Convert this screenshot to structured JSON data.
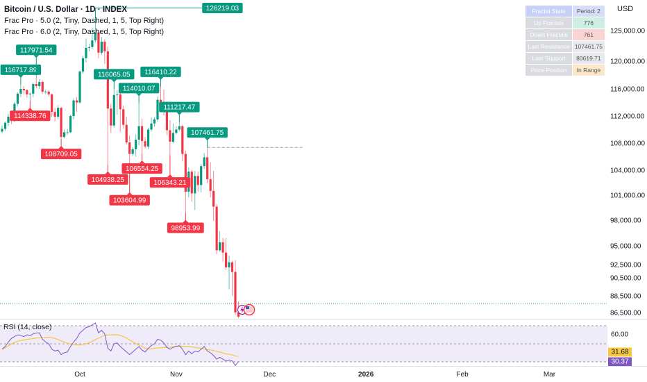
{
  "header": {
    "title": "Bitcoin / U.S. Dollar · 1D · INDEX",
    "indicators": [
      "Frac Pro · 5.0 (2, Tiny, Dashed, 1, 5, Top Right)",
      "Frac Pro · 6.0 (2, Tiny, Dashed, 1, 5, Top Right)"
    ]
  },
  "axis": {
    "currency": "USD"
  },
  "table": {
    "rows": [
      {
        "label": "Fractal State",
        "value": "Period: 2",
        "label_bg": "#c7d0f6",
        "value_bg": "#d6ddf7"
      },
      {
        "label": "Up Fractals",
        "value": "776",
        "label_bg": "#d9dbe0",
        "value_bg": "#cdeee2"
      },
      {
        "label": "Down Fractals",
        "value": "761",
        "label_bg": "#d9dbe0",
        "value_bg": "#f9d4d4"
      },
      {
        "label": "Last Resistance",
        "value": "107461.75",
        "label_bg": "#d9dbe0",
        "value_bg": "#e8e9ec"
      },
      {
        "label": "Last Support",
        "value": "80619.71",
        "label_bg": "#d9dbe0",
        "value_bg": "#e8e9ec"
      },
      {
        "label": "Price Position",
        "value": "In Range",
        "label_bg": "#d9dbe0",
        "value_bg": "#fde7cb"
      }
    ]
  },
  "colors": {
    "up": "#089981",
    "down": "#f23645",
    "rsi": "#7e57c2",
    "rsi_ma": "#f5c842",
    "rsi_band": "#efebf8"
  },
  "chart_data": [
    {
      "type": "candlestick",
      "interval": "1D",
      "first_date": "2025-09-06",
      "y_ticks": [
        "125,000.00",
        "120,000.00",
        "116,000.00",
        "112,000.00",
        "108,000.00",
        "104,000.00",
        "101,000.00",
        "98,000.00",
        "95,000.00",
        "92,500.00",
        "90,500.00",
        "88,500.00",
        "86,500.00"
      ],
      "y_tick_values": [
        125000,
        120000,
        116000,
        112000,
        108000,
        104000,
        101000,
        98000,
        95000,
        92500,
        90500,
        88500,
        86500
      ],
      "x_ticks": [
        {
          "label": "Oct",
          "date": "2025-10-01"
        },
        {
          "label": "Nov",
          "date": "2025-11-01"
        },
        {
          "label": "Dec",
          "date": "2025-12-01"
        },
        {
          "label": "2026",
          "date": "2026-01-01",
          "bold": true
        },
        {
          "label": "Feb",
          "date": "2026-02-01"
        },
        {
          "label": "Mar",
          "date": "2026-03-01"
        }
      ],
      "ohlc": [
        [
          109800,
          110700,
          109500,
          110200
        ],
        [
          110200,
          111300,
          109900,
          111100
        ],
        [
          111100,
          112400,
          110600,
          112000
        ],
        [
          112000,
          112600,
          110900,
          111400
        ],
        [
          111400,
          114200,
          111200,
          113900
        ],
        [
          113900,
          115600,
          113500,
          115400
        ],
        [
          115400,
          116718,
          114900,
          116100
        ],
        [
          116100,
          116500,
          115300,
          115900
        ],
        [
          115900,
          116100,
          114800,
          115300
        ],
        [
          115300,
          115600,
          114339,
          115400
        ],
        [
          115400,
          117000,
          114900,
          116800
        ],
        [
          116800,
          117972,
          116200,
          116500
        ],
        [
          116500,
          117500,
          116100,
          117100
        ],
        [
          117100,
          117300,
          115400,
          115700
        ],
        [
          115700,
          116000,
          115300,
          115700
        ],
        [
          115700,
          115900,
          115000,
          115300
        ],
        [
          115300,
          115400,
          112000,
          112700
        ],
        [
          112700,
          113300,
          111300,
          112000
        ],
        [
          112000,
          113700,
          111600,
          113300
        ],
        [
          113300,
          113500,
          108709,
          109000
        ],
        [
          109000,
          110100,
          108800,
          109700
        ],
        [
          109700,
          110200,
          109300,
          109700
        ],
        [
          109700,
          112300,
          109600,
          112100
        ],
        [
          112100,
          114700,
          111600,
          114400
        ],
        [
          114400,
          114900,
          112700,
          114100
        ],
        [
          114100,
          118800,
          113900,
          118600
        ],
        [
          118600,
          121000,
          118300,
          120600
        ],
        [
          120600,
          123800,
          119900,
          122300
        ],
        [
          122300,
          122900,
          121700,
          122400
        ],
        [
          122400,
          125600,
          122100,
          123500
        ],
        [
          123500,
          126219,
          123200,
          124800
        ],
        [
          124800,
          125100,
          120600,
          121500
        ],
        [
          121500,
          124100,
          121100,
          123300
        ],
        [
          123300,
          123700,
          119700,
          121700
        ],
        [
          121700,
          122500,
          104938,
          113200
        ],
        [
          113200,
          113900,
          109600,
          110700
        ],
        [
          110700,
          116065,
          110400,
          115200
        ],
        [
          115200,
          115900,
          112300,
          115300
        ],
        [
          115300,
          115700,
          109800,
          113100
        ],
        [
          113100,
          113600,
          110200,
          110800
        ],
        [
          110800,
          112000,
          107900,
          108200
        ],
        [
          108200,
          109200,
          103605,
          106500
        ],
        [
          106500,
          107500,
          106200,
          107200
        ],
        [
          107200,
          109400,
          106100,
          108600
        ],
        [
          108600,
          114010,
          107800,
          110600
        ],
        [
          110600,
          111700,
          106554,
          108400
        ],
        [
          108400,
          109000,
          107300,
          107600
        ],
        [
          107600,
          110400,
          107200,
          110100
        ],
        [
          110100,
          111900,
          109800,
          111000
        ],
        [
          111000,
          111900,
          110500,
          111600
        ],
        [
          111600,
          115000,
          111300,
          114500
        ],
        [
          114500,
          116410,
          113900,
          114100
        ],
        [
          114100,
          116000,
          112200,
          112900
        ],
        [
          112900,
          113600,
          109300,
          110000
        ],
        [
          110000,
          111500,
          106343,
          108300
        ],
        [
          108300,
          111000,
          108100,
          109600
        ],
        [
          109600,
          110600,
          109400,
          110100
        ],
        [
          110100,
          111217,
          109900,
          110600
        ],
        [
          110600,
          110800,
          105400,
          106500
        ],
        [
          106500,
          107000,
          98954,
          101500
        ],
        [
          101500,
          104500,
          100800,
          103900
        ],
        [
          103900,
          104100,
          100300,
          101300
        ],
        [
          101300,
          104000,
          99300,
          103400
        ],
        [
          103400,
          103900,
          101500,
          102300
        ],
        [
          102300,
          105000,
          101400,
          104700
        ],
        [
          104700,
          106600,
          104300,
          106000
        ],
        [
          106000,
          107462,
          102500,
          103000
        ],
        [
          103000,
          105300,
          100800,
          101600
        ],
        [
          101600,
          104000,
          98000,
          99700
        ],
        [
          99700,
          100000,
          94000,
          94500
        ],
        [
          94500,
          96800,
          94300,
          95500
        ],
        [
          95500,
          96000,
          93000,
          94200
        ],
        [
          94200,
          96000,
          91800,
          92200
        ],
        [
          92200,
          93800,
          89300,
          92900
        ],
        [
          92900,
          93100,
          88600,
          91500
        ],
        [
          91500,
          93200,
          86300,
          86600
        ],
        [
          86600,
          87900,
          85900,
          86100
        ]
      ],
      "fractals": [
        {
          "text": "116717.89",
          "date": "2025-09-12",
          "price": 116718,
          "type": "up"
        },
        {
          "text": "117971.54",
          "date": "2025-09-17",
          "price": 117972,
          "type": "up"
        },
        {
          "text": "114338.76",
          "date": "2025-09-15",
          "price": 114339,
          "type": "down"
        },
        {
          "text": "108709.05",
          "date": "2025-09-25",
          "price": 108709,
          "type": "down"
        },
        {
          "text": "126219.03",
          "date": "2025-10-06",
          "price": 126219,
          "type": "up"
        },
        {
          "text": "104938.25",
          "date": "2025-10-10",
          "price": 104938,
          "type": "down"
        },
        {
          "text": "116065.05",
          "date": "2025-10-12",
          "price": 116065,
          "type": "up"
        },
        {
          "text": "103604.99",
          "date": "2025-10-17",
          "price": 103605,
          "type": "down"
        },
        {
          "text": "114010.07",
          "date": "2025-10-20",
          "price": 114010,
          "type": "up"
        },
        {
          "text": "106554.25",
          "date": "2025-10-21",
          "price": 106554,
          "type": "down"
        },
        {
          "text": "116410.22",
          "date": "2025-10-27",
          "price": 116410,
          "type": "up"
        },
        {
          "text": "106343.21",
          "date": "2025-10-30",
          "price": 106343,
          "type": "down"
        },
        {
          "text": "111217.47",
          "date": "2025-11-02",
          "price": 111217,
          "type": "up"
        },
        {
          "text": "98953.99",
          "date": "2025-11-04",
          "price": 98954,
          "type": "down"
        },
        {
          "text": "107461.75",
          "date": "2025-11-11",
          "price": 107462,
          "type": "up"
        }
      ],
      "resistance_line": {
        "price": 107461.75,
        "from_date": "2025-11-11",
        "style": "dashed"
      }
    },
    {
      "type": "line",
      "title": "RSI (14, close)",
      "y_ticks": [
        "60.00"
      ],
      "levels": [
        70,
        50,
        30
      ],
      "ylim": [
        25,
        75
      ],
      "rsi": [
        44,
        47,
        52,
        56,
        58,
        60,
        59,
        58,
        60,
        59,
        61,
        62,
        62,
        55,
        52,
        50,
        44,
        42,
        43,
        38,
        40,
        41,
        47,
        52,
        56,
        62,
        65,
        68,
        69,
        71,
        73,
        62,
        65,
        61,
        45,
        42,
        50,
        51,
        47,
        44,
        41,
        38,
        41,
        44,
        47,
        43,
        41,
        45,
        48,
        50,
        55,
        54,
        51,
        46,
        44,
        46,
        47,
        48,
        44,
        38,
        42,
        39,
        42,
        41,
        44,
        47,
        42,
        40,
        37,
        33,
        35,
        33,
        31,
        32,
        31,
        26,
        30.37
      ],
      "rsi_last": "30.37",
      "ma_last": "31.68"
    }
  ]
}
